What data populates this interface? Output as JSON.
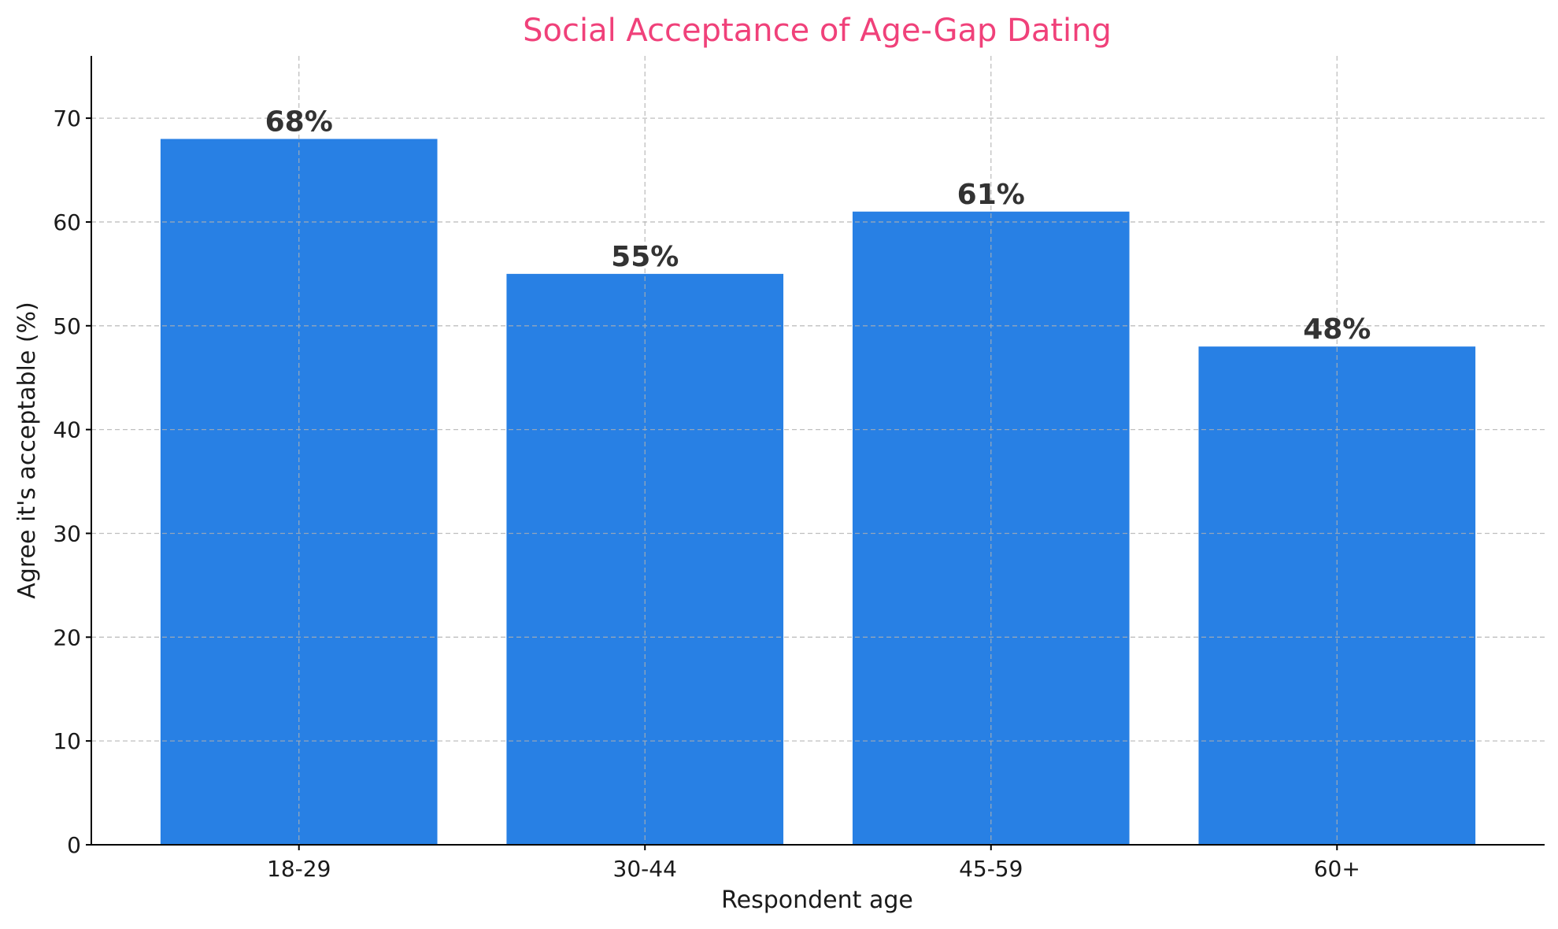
{
  "chart_data": {
    "type": "bar",
    "title": "Social Acceptance of Age-Gap Dating",
    "xlabel": "Respondent age",
    "ylabel": "Agree it's acceptable (%)",
    "categories": [
      "18-29",
      "30-44",
      "45-59",
      "60+"
    ],
    "values": [
      68,
      55,
      61,
      48
    ],
    "data_labels": [
      "68%",
      "55%",
      "61%",
      "48%"
    ],
    "ylim": [
      0,
      76
    ],
    "yticks": [
      0,
      10,
      20,
      30,
      40,
      50,
      60,
      70
    ],
    "grid": true,
    "legend": "none"
  },
  "colors": {
    "bar": "#2880e4",
    "title": "#f0417a"
  }
}
